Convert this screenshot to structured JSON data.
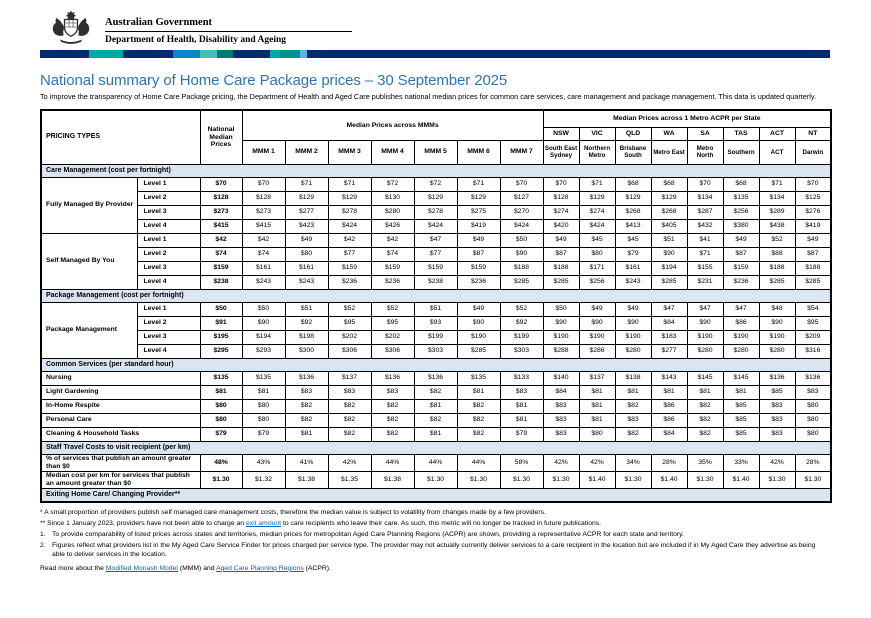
{
  "header": {
    "government": "Australian Government",
    "department": "Department of Health, Disability and Ageing"
  },
  "brand_bar": {
    "segments": [
      {
        "color": "#012a70",
        "width": 49
      },
      {
        "color": "#00a9a3",
        "width": 34
      },
      {
        "color": "#012a70",
        "width": 50
      },
      {
        "color": "#0b84c8",
        "width": 27
      },
      {
        "color": "#45bdb5",
        "width": 17
      },
      {
        "color": "#007a74",
        "width": 16
      },
      {
        "color": "#012a70",
        "width": 37
      },
      {
        "color": "#00a9a3",
        "width": 10
      },
      {
        "color": "#00918a",
        "width": 20
      },
      {
        "color": "#55b7e5",
        "width": 7
      },
      {
        "color": "#012a70",
        "width": 0
      }
    ]
  },
  "page": {
    "title": "National summary of Home Care Package prices – 30 September 2025",
    "intro": "To improve the transparency of Home Care Package pricing, the Department of Health and Aged Care publishes national median prices for common care services, care management and package management. This data is updated quarterly."
  },
  "colors": {
    "accent_blue": "#2E74B5",
    "link_blue": "#0563C1",
    "section_bg": "#dbe5f1"
  },
  "table": {
    "headers": {
      "pricing_types": "PRICING TYPES",
      "national_median": "National Median Prices",
      "mmm_group": "Median Prices across MMMs",
      "mmm": [
        "MMM 1",
        "MMM 2",
        "MMM 3",
        "MMM 4",
        "MMM 5",
        "MMM 6",
        "MMM 7"
      ],
      "state_group": "Median Prices across 1 Metro ACPR per State",
      "states": [
        "NSW",
        "VIC",
        "QLD",
        "WA",
        "SA",
        "TAS",
        "ACT",
        "NT"
      ],
      "regions": [
        "South East Sydney",
        "Northern Metro",
        "Brisbane South",
        "Metro East",
        "Metro North",
        "Southern",
        "ACT",
        "Darwin"
      ]
    },
    "sections": [
      {
        "title": "Care Management (cost per fortnight)",
        "groups": [
          {
            "label": "Fully Managed By Provider",
            "rows": [
              {
                "level": "Level 1",
                "national": "$70",
                "values": [
                  "$70",
                  "$71",
                  "$71",
                  "$72",
                  "$72",
                  "$71",
                  "$70",
                  "$70",
                  "$71",
                  "$68",
                  "$68",
                  "$70",
                  "$68",
                  "$71",
                  "$70"
                ]
              },
              {
                "level": "Level 2",
                "national": "$128",
                "values": [
                  "$128",
                  "$129",
                  "$129",
                  "$130",
                  "$129",
                  "$129",
                  "$127",
                  "$128",
                  "$129",
                  "$129",
                  "$129",
                  "$134",
                  "$135",
                  "$134",
                  "$125"
                ]
              },
              {
                "level": "Level 3",
                "national": "$273",
                "values": [
                  "$273",
                  "$277",
                  "$278",
                  "$280",
                  "$278",
                  "$275",
                  "$270",
                  "$274",
                  "$274",
                  "$268",
                  "$268",
                  "$287",
                  "$256",
                  "$289",
                  "$276"
                ]
              },
              {
                "level": "Level 4",
                "national": "$415",
                "values": [
                  "$415",
                  "$423",
                  "$424",
                  "$426",
                  "$424",
                  "$419",
                  "$424",
                  "$420",
                  "$424",
                  "$413",
                  "$405",
                  "$432",
                  "$380",
                  "$438",
                  "$419"
                ]
              }
            ]
          },
          {
            "label": "Self Managed By You",
            "rows": [
              {
                "level": "Level 1",
                "national": "$42",
                "values": [
                  "$42",
                  "$49",
                  "$42",
                  "$42",
                  "$47",
                  "$49",
                  "$50",
                  "$49",
                  "$45",
                  "$45",
                  "$51",
                  "$41",
                  "$49",
                  "$52",
                  "$49"
                ]
              },
              {
                "level": "Level 2",
                "national": "$74",
                "values": [
                  "$74",
                  "$80",
                  "$77",
                  "$74",
                  "$77",
                  "$87",
                  "$90",
                  "$87",
                  "$80",
                  "$79",
                  "$90",
                  "$71",
                  "$87",
                  "$88",
                  "$87"
                ]
              },
              {
                "level": "Level 3",
                "national": "$159",
                "values": [
                  "$161",
                  "$161",
                  "$159",
                  "$159",
                  "$159",
                  "$159",
                  "$188",
                  "$188",
                  "$171",
                  "$161",
                  "$194",
                  "$155",
                  "$159",
                  "$188",
                  "$188"
                ]
              },
              {
                "level": "Level 4",
                "national": "$238",
                "values": [
                  "$243",
                  "$243",
                  "$236",
                  "$236",
                  "$238",
                  "$236",
                  "$285",
                  "$285",
                  "$256",
                  "$243",
                  "$285",
                  "$231",
                  "$236",
                  "$285",
                  "$285"
                ]
              }
            ]
          }
        ]
      },
      {
        "title": "Package Management (cost per fortnight)",
        "groups": [
          {
            "label": "Package Management",
            "rows": [
              {
                "level": "Level 1",
                "national": "$50",
                "values": [
                  "$50",
                  "$51",
                  "$52",
                  "$52",
                  "$51",
                  "$49",
                  "$52",
                  "$50",
                  "$49",
                  "$49",
                  "$47",
                  "$47",
                  "$47",
                  "$48",
                  "$54"
                ]
              },
              {
                "level": "Level 2",
                "national": "$91",
                "values": [
                  "$90",
                  "$92",
                  "$95",
                  "$95",
                  "$93",
                  "$90",
                  "$92",
                  "$90",
                  "$90",
                  "$90",
                  "$84",
                  "$90",
                  "$86",
                  "$90",
                  "$95"
                ]
              },
              {
                "level": "Level 3",
                "national": "$195",
                "values": [
                  "$194",
                  "$198",
                  "$202",
                  "$202",
                  "$199",
                  "$190",
                  "$199",
                  "$190",
                  "$190",
                  "$190",
                  "$183",
                  "$190",
                  "$190",
                  "$190",
                  "$209"
                ]
              },
              {
                "level": "Level 4",
                "national": "$295",
                "values": [
                  "$293",
                  "$300",
                  "$306",
                  "$306",
                  "$303",
                  "$285",
                  "$303",
                  "$288",
                  "$286",
                  "$280",
                  "$277",
                  "$280",
                  "$280",
                  "$280",
                  "$316"
                ]
              }
            ]
          }
        ]
      },
      {
        "title": "Common Services (per standard hour)",
        "rows": [
          {
            "label": "Nursing",
            "national": "$135",
            "values": [
              "$135",
              "$136",
              "$137",
              "$136",
              "$136",
              "$135",
              "$133",
              "$140",
              "$137",
              "$138",
              "$143",
              "$145",
              "$145",
              "$136",
              "$136"
            ]
          },
          {
            "label": "Light Gardening",
            "national": "$81",
            "values": [
              "$81",
              "$83",
              "$83",
              "$83",
              "$82",
              "$81",
              "$83",
              "$84",
              "$81",
              "$81",
              "$81",
              "$81",
              "$81",
              "$85",
              "$83"
            ]
          },
          {
            "label": "In-Home Respite",
            "national": "$80",
            "values": [
              "$80",
              "$82",
              "$82",
              "$82",
              "$81",
              "$82",
              "$81",
              "$83",
              "$81",
              "$82",
              "$86",
              "$82",
              "$85",
              "$83",
              "$80"
            ]
          },
          {
            "label": "Personal Care",
            "national": "$80",
            "values": [
              "$80",
              "$82",
              "$82",
              "$82",
              "$82",
              "$82",
              "$81",
              "$83",
              "$81",
              "$83",
              "$86",
              "$82",
              "$85",
              "$83",
              "$80"
            ]
          },
          {
            "label": "Cleaning & Household Tasks",
            "national": "$79",
            "values": [
              "$79",
              "$81",
              "$82",
              "$82",
              "$81",
              "$82",
              "$79",
              "$83",
              "$80",
              "$82",
              "$84",
              "$82",
              "$85",
              "$83",
              "$80"
            ]
          }
        ]
      },
      {
        "title": "Staff Travel Costs to visit recipient (per km)",
        "rows": [
          {
            "label": "% of services that publish an amount greater than $0",
            "national": "48%",
            "values": [
              "43%",
              "41%",
              "42%",
              "44%",
              "44%",
              "44%",
              "58%",
              "42%",
              "42%",
              "34%",
              "28%",
              "35%",
              "33%",
              "42%",
              "28%"
            ]
          },
          {
            "label": "Median cost per km for services that publish an amount greater than $0",
            "national": "$1.30",
            "values": [
              "$1.32",
              "$1.38",
              "$1.35",
              "$1.38",
              "$1.30",
              "$1.30",
              "$1.30",
              "$1.30",
              "$1.40",
              "$1.30",
              "$1.40",
              "$1.30",
              "$1.40",
              "$1.30",
              "$1.30"
            ]
          }
        ]
      },
      {
        "title": "Exiting Home Care/ Changing Provider**"
      }
    ]
  },
  "footnotes": {
    "star": "* A small proportion of providers publish self managed care management costs, therefore the median value is subject to volatility from changes made by a few providers.",
    "doublestar_pre": "** Since 1 January 2023, providers have not been able to charge an ",
    "doublestar_link": "exit amount",
    "doublestar_post": " to care recipients who leave their care. As such, this metric will no longer be tracked in future publications.",
    "n1_num": "1.",
    "n1": "To provide comparability of listed prices across states and territories, median prices for metropolitan Aged Care Planning Regions (ACPR) are shown, providing a representative ACPR for each state and territory.",
    "n2_num": "2.",
    "n2": "Figures reflect what providers list in the My Aged Care Service Finder for prices charged per service type. The provider may not actually currently deliver services to a care recipient in the location but are included if in My Aged Care they advertise as being able to deliver services in the location.",
    "readmore_pre": "Read more about the ",
    "readmore_link1": "Modified Monash Model",
    "readmore_mid": " (MMM) and ",
    "readmore_link2": "Aged Care Planning Regions",
    "readmore_post": " (ACPR)."
  }
}
